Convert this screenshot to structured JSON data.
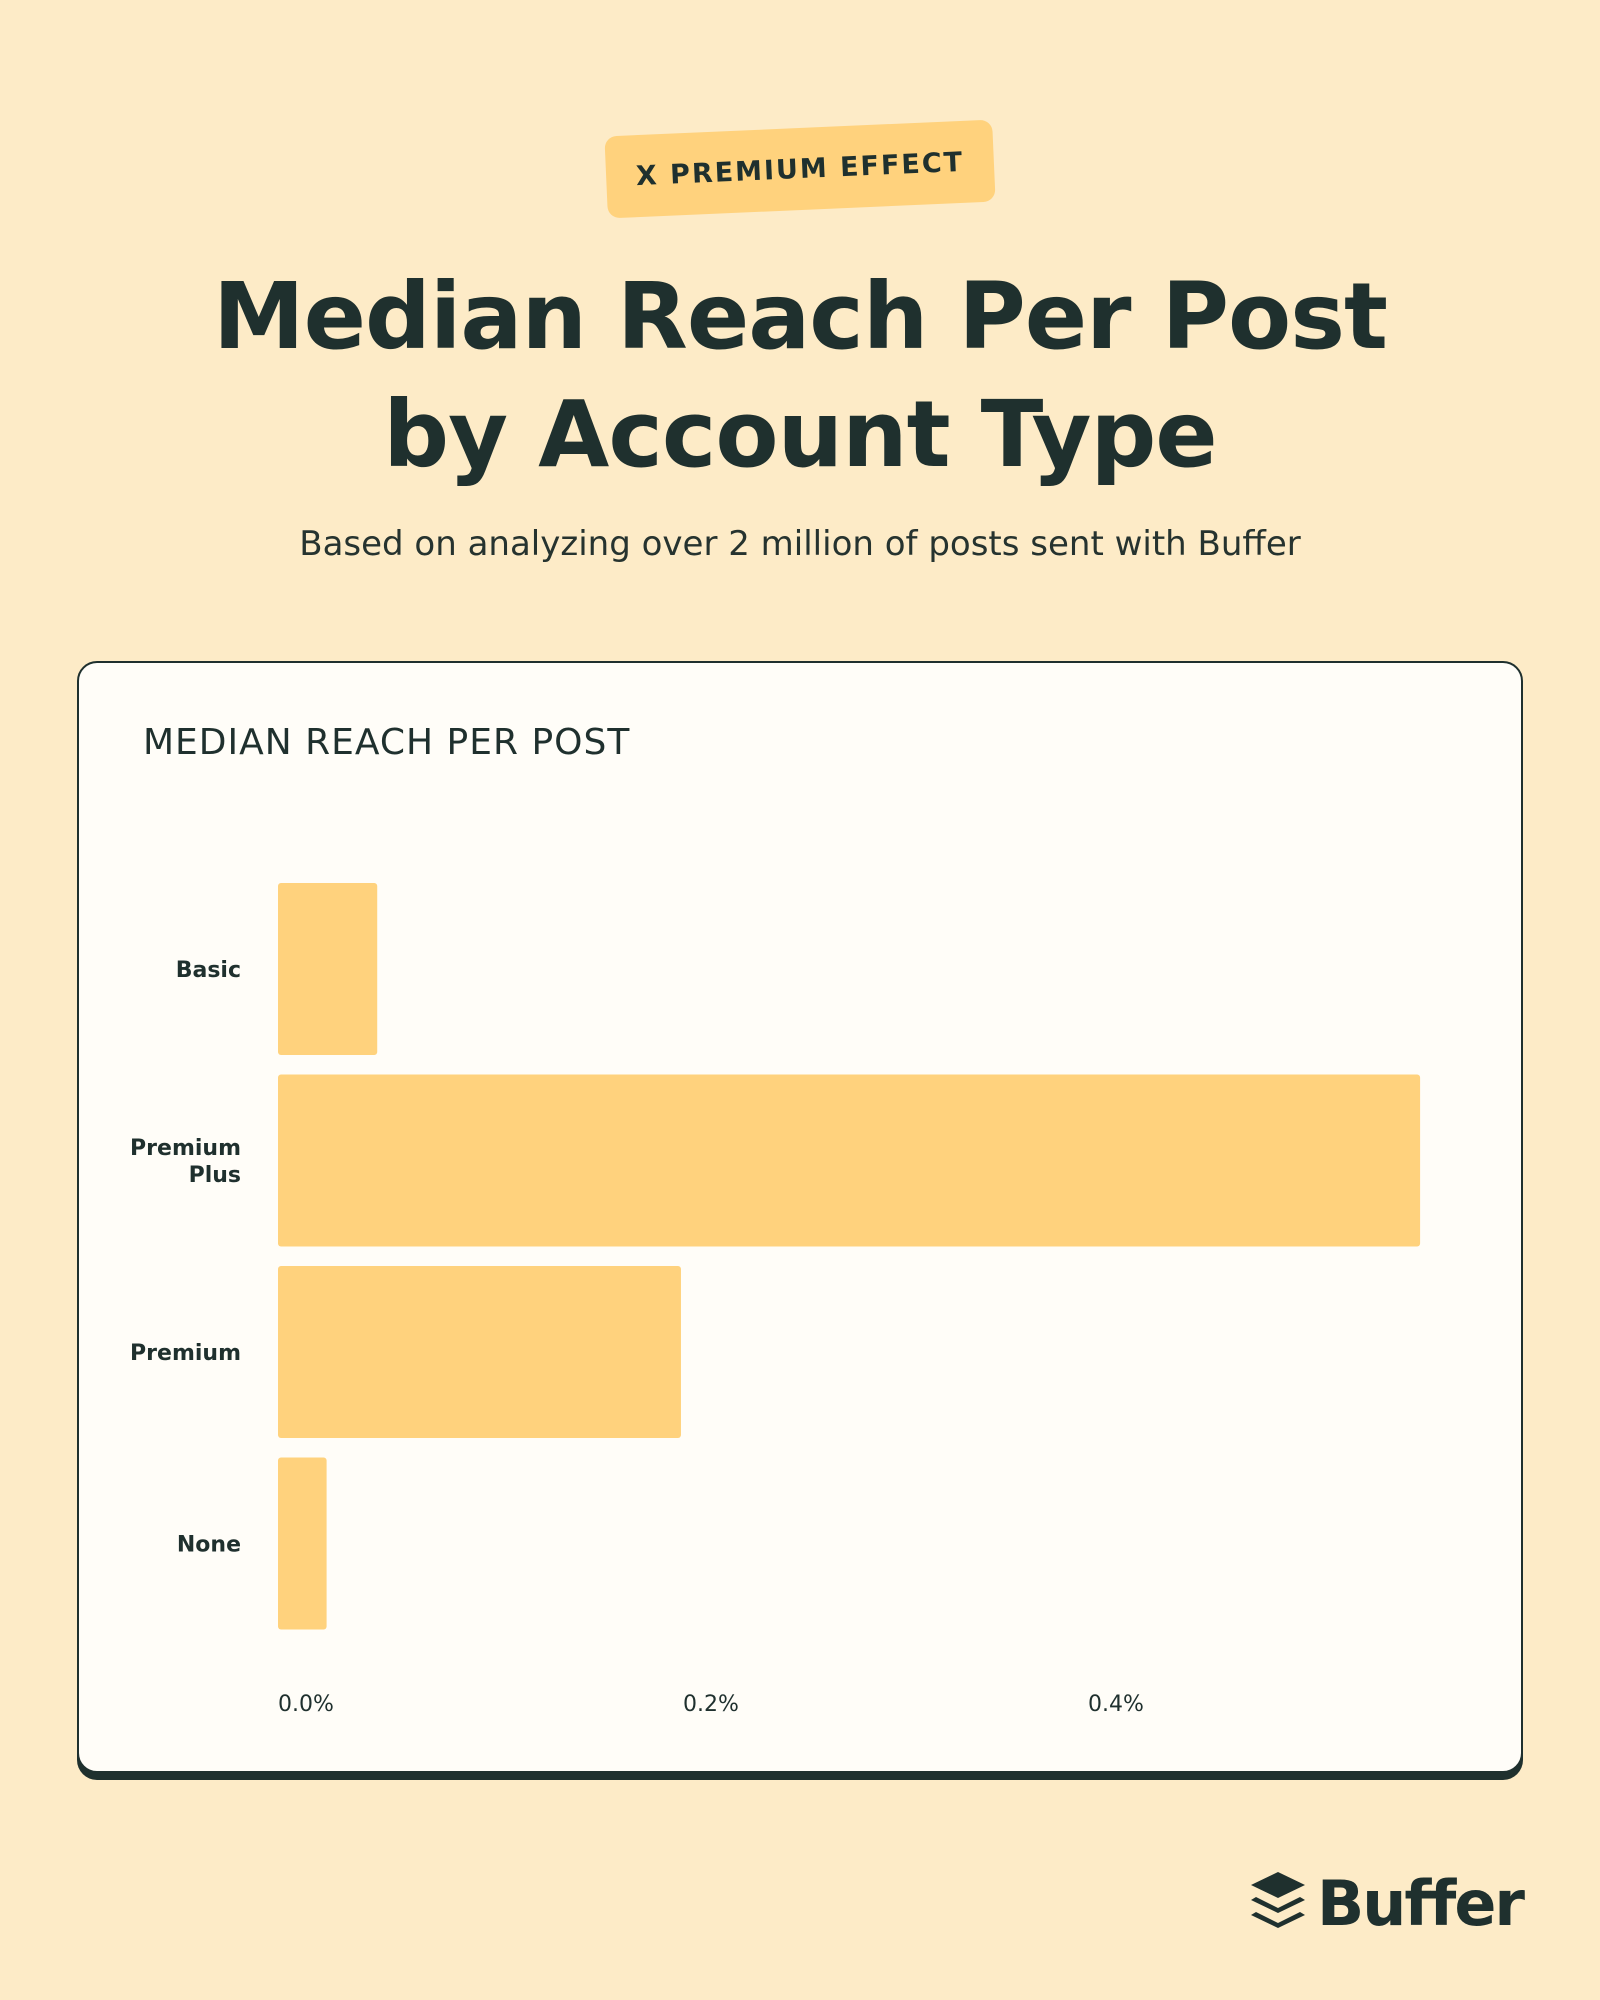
{
  "header": {
    "tag": "X PREMIUM EFFECT",
    "title_line1": "Median Reach Per Post",
    "title_line2": "by Account Type",
    "subtitle": "Based on analyzing over 2 million of posts sent with Buffer"
  },
  "brand": {
    "name": "Buffer",
    "logo_icon": "buffer-layers-icon"
  },
  "colors": {
    "background": "#FDEBC7",
    "bar": "#FFD27D",
    "text": "#1F302E",
    "card": "#FFFDF8"
  },
  "chart_data": {
    "type": "bar",
    "orientation": "horizontal",
    "title": "MEDIAN REACH PER POST",
    "categories": [
      "Basic",
      "Premium Plus",
      "Premium",
      "None"
    ],
    "category_lines": [
      [
        "Basic"
      ],
      [
        "Premium",
        "Plus"
      ],
      [
        "Premium"
      ],
      [
        "None"
      ]
    ],
    "values": [
      0.049,
      0.564,
      0.199,
      0.024
    ],
    "value_unit": "%",
    "xlim": [
      0,
      0.6
    ],
    "xticks": [
      0.0,
      0.2,
      0.4
    ],
    "xtick_labels": [
      "0.0%",
      "0.2%",
      "0.4%"
    ],
    "grid": false,
    "legend": "none"
  }
}
